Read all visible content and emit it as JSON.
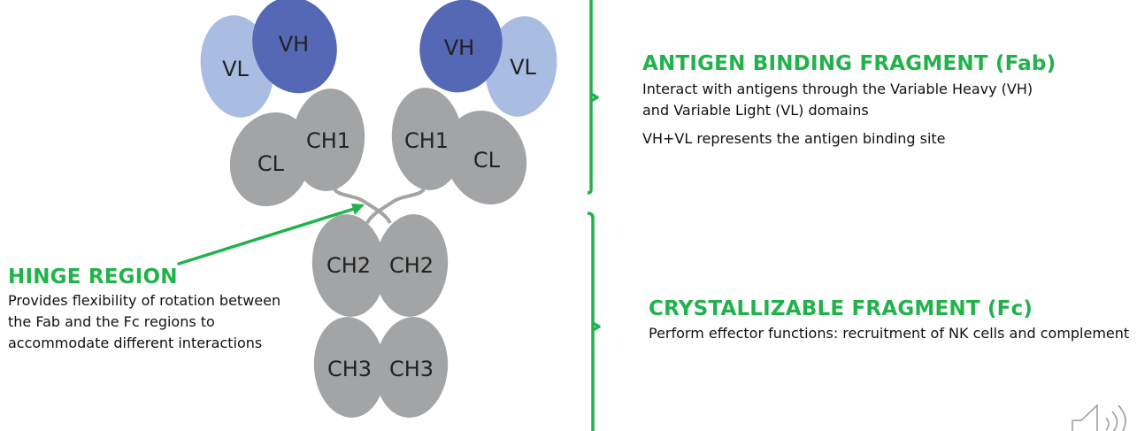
{
  "colors": {
    "vh": "#5468b5",
    "vl": "#a9bde2",
    "constant": "#a3a4a6",
    "accent": "#22b24c",
    "hinge_line": "#a3a4a6"
  },
  "domains": {
    "vh_left": "VH",
    "vl_left": "VL",
    "cl_left": "CL",
    "ch1_left": "CH1",
    "vh_right": "VH",
    "vl_right": "VL",
    "cl_right": "CL",
    "ch1_right": "CH1",
    "ch2_left": "CH2",
    "ch2_right": "CH2",
    "ch3_left": "CH3",
    "ch3_right": "CH3"
  },
  "hinge": {
    "title": "HINGE REGION",
    "description": "Provides flexibility of rotation between the Fab and the Fc regions to accommodate different interactions"
  },
  "fab": {
    "title": "ANTIGEN BINDING FRAGMENT (Fab)",
    "description_1": "Interact with antigens through the Variable Heavy (VH) and Variable Light (VL) domains",
    "description_2": "VH+VL represents the antigen binding site"
  },
  "fc": {
    "title": "CRYSTALLIZABLE FRAGMENT (Fc)",
    "description": "Perform effector functions: recruitment of NK cells and complement"
  },
  "icons": {
    "audio": "speaker-icon"
  }
}
